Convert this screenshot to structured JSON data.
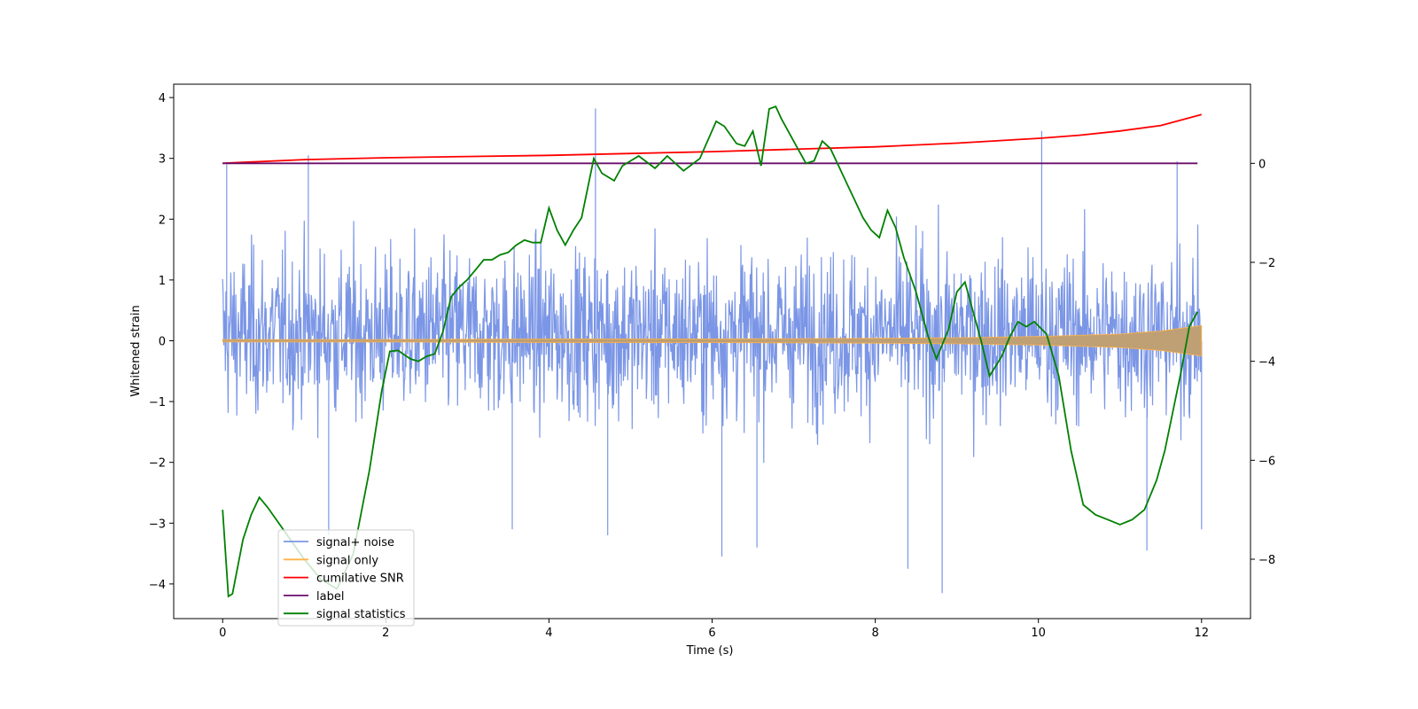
{
  "chart_data": {
    "type": "line",
    "xlabel": "Time (s)",
    "ylabel": "Whitened strain",
    "xlim": [
      -0.6,
      12.6
    ],
    "ylim_left": [
      -4.57,
      4.22
    ],
    "ylim_right": [
      -9.2,
      1.6
    ],
    "x_ticks": [
      0,
      2,
      4,
      6,
      8,
      10,
      12
    ],
    "y_ticks_left": [
      -4,
      -3,
      -2,
      -1,
      0,
      1,
      2,
      3,
      4
    ],
    "y_ticks_right": [
      -8,
      -6,
      -4,
      -2,
      0
    ],
    "legend_position": "lower-left",
    "series": [
      {
        "name": "signal+ noise",
        "color": "#7b96e6",
        "axis": "left",
        "kind": "noise-band",
        "x_range": [
          0,
          12
        ],
        "typical_band": [
          -1.3,
          1.6
        ],
        "extreme_peaks": [
          {
            "x": 0.05,
            "y": 2.9
          },
          {
            "x": 1.05,
            "y": 3.05
          },
          {
            "x": 1.3,
            "y": -3.2
          },
          {
            "x": 3.55,
            "y": -3.1
          },
          {
            "x": 4.57,
            "y": 3.82
          },
          {
            "x": 4.72,
            "y": -3.2
          },
          {
            "x": 6.12,
            "y": -3.55
          },
          {
            "x": 6.55,
            "y": -3.4
          },
          {
            "x": 8.4,
            "y": -3.75
          },
          {
            "x": 8.82,
            "y": -4.15
          },
          {
            "x": 10.04,
            "y": 3.45
          },
          {
            "x": 11.7,
            "y": 2.95
          },
          {
            "x": 11.33,
            "y": -3.45
          },
          {
            "x": 12.0,
            "y": -3.1
          }
        ]
      },
      {
        "name": "signal only",
        "color": "#ffb347",
        "axis": "left",
        "kind": "chirp-envelope",
        "x": [
          0,
          2,
          4,
          6,
          8,
          9,
          10,
          11,
          11.5,
          12
        ],
        "amplitude": [
          0.02,
          0.02,
          0.03,
          0.03,
          0.04,
          0.05,
          0.07,
          0.11,
          0.16,
          0.25
        ]
      },
      {
        "name": "cumilative SNR",
        "color": "#ff0000",
        "axis": "left",
        "x": [
          0,
          1,
          2,
          3,
          4,
          5,
          6,
          7,
          8,
          9,
          10,
          10.5,
          11,
          11.5,
          12
        ],
        "y": [
          2.92,
          2.98,
          3.01,
          3.03,
          3.05,
          3.08,
          3.11,
          3.15,
          3.19,
          3.25,
          3.33,
          3.38,
          3.45,
          3.54,
          3.72
        ]
      },
      {
        "name": "label",
        "color": "#6a0d6a",
        "axis": "right",
        "x": [
          0,
          11.95
        ],
        "y": [
          0,
          0
        ]
      },
      {
        "name": "signal statistics",
        "color": "#008000",
        "axis": "right",
        "x": [
          0,
          0.07,
          0.12,
          0.25,
          0.35,
          0.45,
          0.55,
          0.7,
          0.85,
          1.0,
          1.2,
          1.4,
          1.6,
          1.8,
          1.95,
          2.05,
          2.15,
          2.3,
          2.4,
          2.5,
          2.6,
          2.7,
          2.8,
          2.9,
          3.0,
          3.1,
          3.2,
          3.3,
          3.4,
          3.5,
          3.6,
          3.7,
          3.8,
          3.9,
          4.0,
          4.1,
          4.2,
          4.3,
          4.4,
          4.55,
          4.65,
          4.8,
          4.9,
          5.1,
          5.3,
          5.45,
          5.65,
          5.85,
          6.05,
          6.15,
          6.3,
          6.4,
          6.5,
          6.6,
          6.7,
          6.78,
          6.85,
          6.95,
          7.05,
          7.15,
          7.25,
          7.35,
          7.45,
          7.55,
          7.65,
          7.75,
          7.85,
          7.95,
          8.05,
          8.15,
          8.25,
          8.35,
          8.5,
          8.65,
          8.75,
          8.9,
          9.0,
          9.1,
          9.2,
          9.3,
          9.4,
          9.55,
          9.65,
          9.75,
          9.85,
          9.95,
          10.1,
          10.25,
          10.4,
          10.55,
          10.7,
          10.85,
          11.0,
          11.15,
          11.3,
          11.45,
          11.55,
          11.65,
          11.75,
          11.85,
          11.95
        ],
        "y": [
          -7.0,
          -8.75,
          -8.7,
          -7.6,
          -7.1,
          -6.75,
          -6.95,
          -7.3,
          -7.65,
          -8.0,
          -8.4,
          -8.6,
          -7.9,
          -6.2,
          -4.6,
          -3.8,
          -3.78,
          -3.95,
          -4.0,
          -3.9,
          -3.85,
          -3.4,
          -2.7,
          -2.5,
          -2.35,
          -2.15,
          -1.95,
          -1.95,
          -1.85,
          -1.8,
          -1.65,
          -1.55,
          -1.6,
          -1.6,
          -0.9,
          -1.35,
          -1.65,
          -1.35,
          -1.1,
          0.1,
          -0.2,
          -0.35,
          -0.05,
          0.15,
          -0.1,
          0.15,
          -0.15,
          0.1,
          0.85,
          0.75,
          0.4,
          0.35,
          0.65,
          -0.05,
          1.1,
          1.15,
          0.9,
          0.6,
          0.3,
          0.0,
          0.05,
          0.45,
          0.3,
          -0.05,
          -0.4,
          -0.75,
          -1.1,
          -1.35,
          -1.5,
          -0.95,
          -1.3,
          -1.9,
          -2.6,
          -3.5,
          -3.95,
          -3.35,
          -2.6,
          -2.4,
          -3.0,
          -3.6,
          -4.3,
          -3.9,
          -3.5,
          -3.2,
          -3.3,
          -3.2,
          -3.45,
          -4.3,
          -5.8,
          -6.9,
          -7.1,
          -7.2,
          -7.3,
          -7.2,
          -7.0,
          -6.4,
          -5.8,
          -5.0,
          -4.2,
          -3.3,
          -3.0
        ]
      }
    ]
  }
}
